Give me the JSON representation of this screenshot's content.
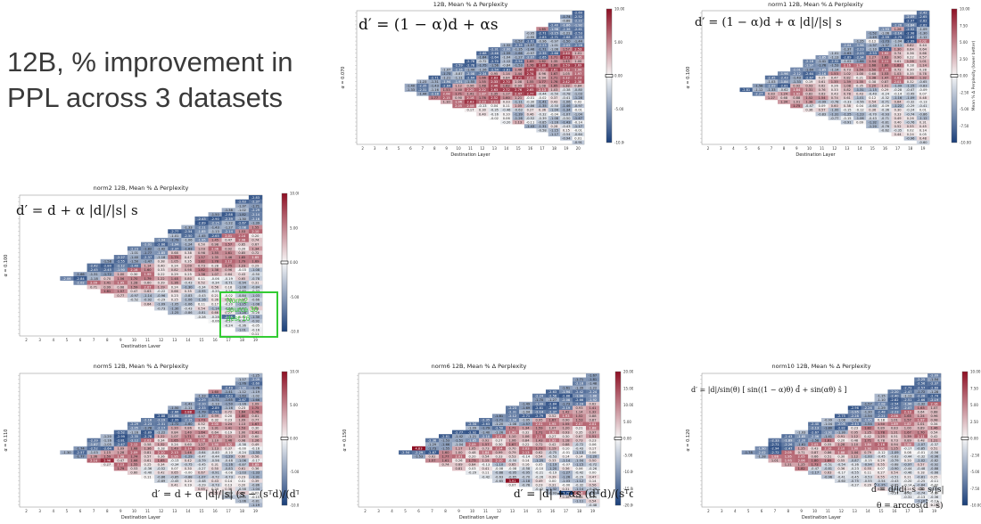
{
  "slide": {
    "title_line1": "12B, % improvement in",
    "title_line2": "PPL across 3 datasets"
  },
  "colors": {
    "low": "#1a3f7a",
    "mid": "#f7f7f7",
    "high": "#8e1024"
  },
  "chart_data": [
    {
      "type": "heatmap",
      "title": "12B, Mean % Δ Perplexity",
      "formula": "d′ = (1 − α)d + αs",
      "xlabel": "Destination Layer",
      "ylabel": "α = 0.070",
      "colorbar_label": "Mean % Δ Perplexity (lower better)",
      "colorbar_ticks": [
        "10.00",
        "5.00",
        "0.00",
        "-5.00",
        "-10.00"
      ],
      "x_ticks": [
        "2",
        "3",
        "4",
        "5",
        "6",
        "7",
        "8",
        "9",
        "10",
        "11",
        "12",
        "13",
        "14",
        "15",
        "16",
        "17",
        "18",
        "19",
        "20"
      ],
      "rows": 33,
      "cols": 19,
      "value_range": [
        -10,
        10
      ],
      "sample_values": [
        -0.72,
        1.05,
        1.13,
        1.55,
        1.65,
        -2.15,
        1.16,
        1.44,
        1.68,
        -1.94,
        -1.47,
        0.82
      ]
    },
    {
      "type": "heatmap",
      "title": "norm1 12B, Mean % Δ Perplexity",
      "formula": "d′ = (1 − α)d + α |d|/|s| s",
      "xlabel": "Destination Layer",
      "ylabel": "α = 0.100",
      "colorbar_label": "Mean % Δ Perplexity (lower better)",
      "colorbar_ticks": [
        "10.00",
        "7.50",
        "5.00",
        "2.50",
        "0.00",
        "-2.50",
        "-5.00",
        "-7.50",
        "-10.00"
      ],
      "x_ticks": [
        "2",
        "3",
        "4",
        "5",
        "6",
        "7",
        "8",
        "9",
        "10",
        "11",
        "12",
        "13",
        "14",
        "15",
        "16",
        "17",
        "18",
        "19"
      ],
      "rows": 33,
      "cols": 18,
      "value_range": [
        -10,
        10
      ],
      "sample_values": [
        -0.62,
        -1.31,
        0.12,
        1.26,
        -1.87,
        0.55,
        -2.19,
        0.29,
        -1.77,
        0.63
      ]
    },
    {
      "type": "heatmap",
      "title": "norm2 12B, Mean % Δ Perplexity",
      "formula": "d′ = d + α |d|/|s| s",
      "xlabel": "Destination Layer",
      "ylabel": "α = 0.100",
      "colorbar_label": "Mean % Δ Perplexity (lower better)",
      "colorbar_ticks": [
        "10.00",
        "5.00",
        "0.00",
        "-5.00",
        "-10.00"
      ],
      "x_ticks": [
        "2",
        "3",
        "4",
        "5",
        "6",
        "7",
        "8",
        "9",
        "10",
        "11",
        "12",
        "13",
        "14",
        "15",
        "16",
        "17",
        "18",
        "19"
      ],
      "annotation": [
        "Norm2",
        "source 30",
        "dest 16"
      ],
      "rows": 33,
      "cols": 18,
      "value_range": [
        -10,
        10
      ],
      "sample_values": [
        0.66,
        0.53,
        -2.56,
        -0.78,
        0.51,
        -1.09,
        0.97,
        -1.85,
        0.68,
        -0.6
      ]
    },
    {
      "type": "heatmap",
      "title": "norm5 12B, Mean % Δ Perplexity",
      "formula": "d′ = d + α |d|/|s| (s − (sᵀd)/(dᵀd) d)",
      "xlabel": "Destination Layer",
      "ylabel": "α = 0.110",
      "colorbar_label": "Mean % Δ Perplexity (lower better)",
      "colorbar_ticks": [
        "10.00",
        "5.00",
        "0.00",
        "-5.00",
        "-10.00"
      ],
      "x_ticks": [
        "2",
        "3",
        "4",
        "5",
        "6",
        "7",
        "8",
        "9",
        "10",
        "11",
        "12",
        "13",
        "14",
        "15",
        "16",
        "17",
        "18",
        "19"
      ],
      "rows": 33,
      "cols": 18,
      "value_range": [
        -10,
        10
      ],
      "sample_values": [
        2.96,
        2.88,
        0.67,
        1.6,
        -1.9,
        1.89,
        1.12,
        0.23,
        1.92
      ]
    },
    {
      "type": "heatmap",
      "title": "norm6 12B, Mean % Δ Perplexity",
      "formula": "d′ = |d| + αs (dᵀd)/(sᵀd)",
      "xlabel": "Destination Layer",
      "ylabel": "α = 0.150",
      "colorbar_label": "Mean % Δ Perplexity (lower better)",
      "colorbar_ticks": [
        "20.00",
        "15.00",
        "10.00",
        "5.00",
        "0.00",
        "-5.00",
        "-10.00",
        "-15.00",
        "-20.00"
      ],
      "x_ticks": [
        "2",
        "3",
        "4",
        "5",
        "6",
        "7",
        "8",
        "9",
        "10",
        "11",
        "12",
        "13",
        "14",
        "15",
        "16",
        "17",
        "18",
        "19"
      ],
      "rows": 33,
      "cols": 18,
      "value_range": [
        -20,
        20
      ],
      "sample_values": [
        4.83,
        3.91,
        -3.7,
        1.88,
        2.52,
        -1.04,
        1.48,
        -1.23
      ]
    },
    {
      "type": "heatmap",
      "title": "norm10 12B, Mean % Δ Perplexity",
      "formula_top": "d′ = |d|/sin(θ) [ sin((1 − α)θ) d̂ + sin(αθ) ŝ ]",
      "formula_bottom1": "d̂ = d/|d|,  ŝ = s/|s|",
      "formula_bottom2": "θ = arccos(d̂ · ŝ)",
      "xlabel": "Destination Layer",
      "ylabel": "α = 0.120",
      "colorbar_label": "Mean % Δ Perplexity (lower better)",
      "colorbar_ticks": [
        "10.00",
        "7.50",
        "5.00",
        "2.50",
        "0.00",
        "-2.50",
        "-5.00",
        "-7.50",
        "-10.00"
      ],
      "x_ticks": [
        "2",
        "3",
        "4",
        "5",
        "6",
        "7",
        "8",
        "9",
        "10",
        "11",
        "12",
        "13",
        "14",
        "15",
        "16",
        "17",
        "18",
        "19"
      ],
      "rows": 33,
      "cols": 18,
      "value_range": [
        -10,
        10
      ],
      "sample_values": [
        -0.99,
        -1.08,
        -2.07,
        -0.6,
        1.41,
        -2.11,
        -0.14,
        0.67
      ]
    }
  ]
}
